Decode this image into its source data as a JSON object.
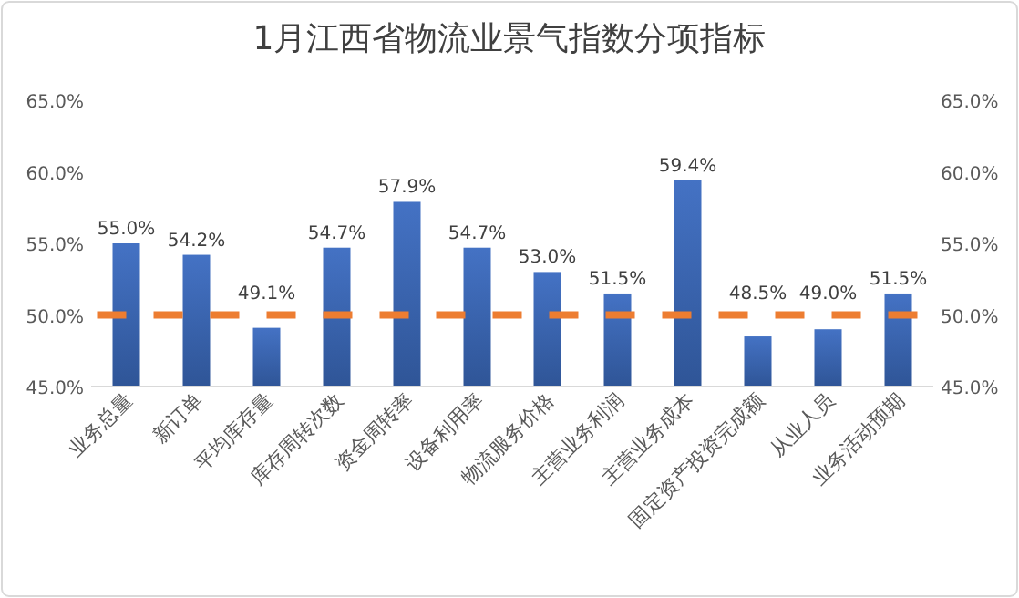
{
  "chart_data": {
    "type": "bar",
    "title": "1月江西省物流业景气指数分项指标",
    "categories": [
      "业务总量",
      "新订单",
      "平均库存量",
      "库存周转次数",
      "资金周转率",
      "设备利用率",
      "物流服务价格",
      "主营业务利润",
      "主营业务成本",
      "固定资产投资完成额",
      "从业人员",
      "业务活动预期"
    ],
    "values": [
      55.0,
      54.2,
      49.1,
      54.7,
      57.9,
      54.7,
      53.0,
      51.5,
      59.4,
      48.5,
      49.0,
      51.5
    ],
    "value_labels": [
      "55.0%",
      "54.2%",
      "49.1%",
      "54.7%",
      "57.9%",
      "54.7%",
      "53.0%",
      "51.5%",
      "59.4%",
      "48.5%",
      "49.0%",
      "51.5%"
    ],
    "color": "#4472c4",
    "ylim": [
      45,
      65
    ],
    "yticks": [
      {
        "value": 45,
        "label": "45.0%"
      },
      {
        "value": 50,
        "label": "50.0%"
      },
      {
        "value": 55,
        "label": "55.0%"
      },
      {
        "value": 60,
        "label": "60.0%"
      },
      {
        "value": 65,
        "label": "65.0%"
      }
    ],
    "y2lim": [
      45,
      65
    ],
    "y2ticks": [
      {
        "value": 45,
        "label": "45.0%"
      },
      {
        "value": 50,
        "label": "50.0%"
      },
      {
        "value": 55,
        "label": "55.0%"
      },
      {
        "value": 60,
        "label": "60.0%"
      },
      {
        "value": 65,
        "label": "65.0%"
      }
    ],
    "ref_lines": [
      {
        "axis": "y",
        "value": 50,
        "color": "#ed7d31",
        "line_style": "dashed"
      }
    ],
    "grid": false
  }
}
